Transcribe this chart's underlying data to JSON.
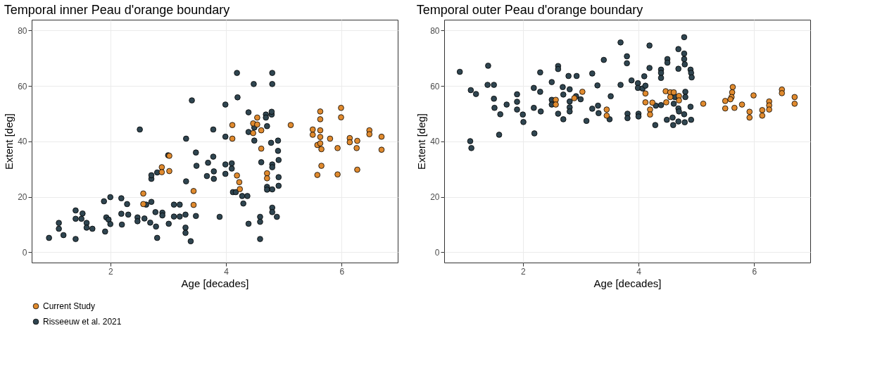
{
  "chart_data": [
    {
      "type": "scatter",
      "title": "Temporal inner Peau d'orange boundary",
      "xlabel": "Age [decades]",
      "ylabel": "Extent [deg]",
      "xlim": [
        0.64,
        6.97
      ],
      "ylim": [
        -3.7,
        83.9
      ],
      "xticks": [
        2,
        4,
        6
      ],
      "yticks": [
        0,
        20,
        40,
        60,
        80
      ],
      "grid": true,
      "legend": "bottom",
      "marker": "circle",
      "series": [
        {
          "name": "Current Study",
          "color": "#e08a2e",
          "x": [
            2.57,
            2.57,
            2.89,
            2.89,
            3.02,
            3.02,
            3.44,
            3.44,
            4.11,
            4.11,
            4.19,
            4.23,
            4.24,
            4.47,
            4.47,
            4.54,
            4.54,
            4.61,
            4.61,
            4.71,
            4.71,
            5.12,
            5.5,
            5.5,
            5.58,
            5.63,
            5.63,
            5.63,
            5.63,
            5.63,
            5.65,
            5.65,
            5.58,
            5.8,
            5.93,
            5.93,
            5.99,
            5.99,
            6.14,
            6.14,
            6.27,
            6.26,
            6.27,
            6.48,
            6.48,
            6.69,
            6.69
          ],
          "values": [
            21.2,
            17.4,
            30.7,
            28.9,
            34.8,
            29.3,
            22.1,
            17.1,
            45.9,
            41.0,
            27.7,
            25.3,
            22.8,
            46.5,
            43.0,
            48.6,
            46.1,
            44.0,
            37.4,
            28.5,
            26.7,
            45.9,
            44.3,
            42.4,
            38.7,
            50.8,
            48.0,
            44.0,
            41.6,
            39.3,
            37.2,
            31.2,
            27.9,
            41.0,
            37.6,
            28.1,
            52.1,
            48.7,
            41.2,
            39.7,
            40.2,
            37.6,
            29.8,
            44.0,
            42.6,
            41.7,
            37.0
          ]
        },
        {
          "name": "Risseeuw et al. 2021",
          "color": "#2f4550",
          "x": [
            0.94,
            1.11,
            1.11,
            1.19,
            1.4,
            1.4,
            1.4,
            1.5,
            1.52,
            1.59,
            1.59,
            1.69,
            1.89,
            1.91,
            1.93,
            1.97,
            2.0,
            2.0,
            2.19,
            2.19,
            2.2,
            2.29,
            2.31,
            2.47,
            2.47,
            2.51,
            2.59,
            2.62,
            2.69,
            2.71,
            2.71,
            2.71,
            2.78,
            2.79,
            2.81,
            2.81,
            2.9,
            2.9,
            3.01,
            3.0,
            3.1,
            3.1,
            3.2,
            3.2,
            3.3,
            3.3,
            3.3,
            3.31,
            3.31,
            3.39,
            3.41,
            3.48,
            3.49,
            3.48,
            3.67,
            3.69,
            3.78,
            3.78,
            3.79,
            3.79,
            3.89,
            3.99,
            3.99,
            3.99,
            3.99,
            4.1,
            4.1,
            4.19,
            4.2,
            4.12,
            4.17,
            4.28,
            4.37,
            4.3,
            4.39,
            4.39,
            4.39,
            4.48,
            4.49,
            4.49,
            4.59,
            4.59,
            4.59,
            4.61,
            4.69,
            4.69,
            4.71,
            4.71,
            4.71,
            4.79,
            4.79,
            4.8,
            4.8,
            4.78,
            4.8,
            4.8,
            4.8,
            4.8,
            4.8,
            4.88,
            4.9,
            4.9,
            4.91,
            4.91,
            4.91
          ],
          "values": [
            5.2,
            10.6,
            8.5,
            6.2,
            15.1,
            12.1,
            4.8,
            12.1,
            14.0,
            10.6,
            8.9,
            8.5,
            18.4,
            7.5,
            12.6,
            11.8,
            10.2,
            19.9,
            19.5,
            13.9,
            10.0,
            17.4,
            13.6,
            12.6,
            11.2,
            44.3,
            12.2,
            17.2,
            10.7,
            18.2,
            26.5,
            27.8,
            14.5,
            9.3,
            5.2,
            28.8,
            14.3,
            13.3,
            10.3,
            35.0,
            17.2,
            12.9,
            17.2,
            12.9,
            13.6,
            8.9,
            7.0,
            25.6,
            41.0,
            4.0,
            54.8,
            36.0,
            31.2,
            13.1,
            27.5,
            32.3,
            44.3,
            34.5,
            29.2,
            26.5,
            12.8,
            53.3,
            41.7,
            31.7,
            28.3,
            32.1,
            30.2,
            64.7,
            55.9,
            21.7,
            21.7,
            20.3,
            20.3,
            17.6,
            10.3,
            50.5,
            43.4,
            60.7,
            45.0,
            40.3,
            4.8,
            12.8,
            11.0,
            32.5,
            49.7,
            48.6,
            45.5,
            23.6,
            22.6,
            49.7,
            50.7,
            64.7,
            60.7,
            39.5,
            31.7,
            30.7,
            22.7,
            16.1,
            14.5,
            12.8,
            40.3,
            36.6,
            33.3,
            27.1,
            24.0
          ]
        }
      ]
    },
    {
      "type": "scatter",
      "title": "Temporal outer Peau d'orange boundary",
      "xlabel": "Age [decades]",
      "ylabel": "Extent [deg]",
      "xlim": [
        0.64,
        6.97
      ],
      "ylim": [
        -3.7,
        83.9
      ],
      "xticks": [
        2,
        4,
        6
      ],
      "yticks": [
        0,
        20,
        40,
        60,
        80
      ],
      "grid": true,
      "legend": "bottom",
      "marker": "circle",
      "series": [
        {
          "name": "Current Study",
          "color": "#e08a2e",
          "x": [
            2.57,
            2.57,
            2.89,
            3.03,
            3.45,
            3.45,
            4.12,
            4.12,
            4.2,
            4.2,
            4.24,
            4.47,
            4.48,
            4.55,
            4.55,
            4.61,
            4.7,
            4.7,
            5.12,
            5.5,
            5.5,
            5.63,
            5.62,
            5.61,
            5.59,
            5.66,
            5.79,
            5.92,
            5.92,
            5.99,
            6.14,
            6.14,
            6.26,
            6.26,
            6.26,
            6.48,
            6.48,
            6.7,
            6.7
          ],
          "values": [
            55.0,
            53.3,
            55.6,
            57.9,
            51.5,
            49.3,
            57.3,
            54.1,
            51.5,
            49.7,
            54.0,
            58.1,
            54.1,
            57.7,
            56.0,
            57.7,
            56.4,
            54.8,
            53.6,
            54.6,
            51.9,
            59.6,
            57.7,
            56.0,
            55.2,
            52.1,
            53.3,
            50.7,
            48.6,
            56.6,
            51.3,
            49.3,
            54.4,
            53.0,
            51.5,
            58.7,
            57.4,
            56.0,
            53.6
          ]
        },
        {
          "name": "Risseeuw et al. 2021",
          "color": "#2f4550",
          "x": [
            0.91,
            1.09,
            1.11,
            1.1,
            1.19,
            1.4,
            1.39,
            1.5,
            1.5,
            1.51,
            1.61,
            1.59,
            1.72,
            1.9,
            1.9,
            1.9,
            2.0,
            2.01,
            2.19,
            2.19,
            2.2,
            2.3,
            2.3,
            2.31,
            2.5,
            2.5,
            2.5,
            2.61,
            2.61,
            2.61,
            2.69,
            2.7,
            2.7,
            2.79,
            2.81,
            2.81,
            2.81,
            2.81,
            2.93,
            2.92,
            3.0,
            3.1,
            3.2,
            3.2,
            3.29,
            3.3,
            3.31,
            3.4,
            3.5,
            3.52,
            3.69,
            3.69,
            3.8,
            3.8,
            3.81,
            3.81,
            3.88,
            4.0,
            4.0,
            3.99,
            3.99,
            4.07,
            4.12,
            4.1,
            4.19,
            4.19,
            4.29,
            4.3,
            4.39,
            4.39,
            4.39,
            4.39,
            4.5,
            4.5,
            4.49,
            4.59,
            4.6,
            4.61,
            4.63,
            4.69,
            4.69,
            4.69,
            4.69,
            4.7,
            4.79,
            4.79,
            4.79,
            4.8,
            4.79,
            4.8,
            4.81,
            4.81,
            4.9,
            4.91,
            4.92,
            4.9,
            4.91
          ],
          "values": [
            65.1,
            40.1,
            37.6,
            58.5,
            57.1,
            67.3,
            60.4,
            60.4,
            55.4,
            52.1,
            49.8,
            42.4,
            53.3,
            57.0,
            54.3,
            51.5,
            49.7,
            47.0,
            59.3,
            52.1,
            42.9,
            64.9,
            57.9,
            50.8,
            61.4,
            55.0,
            53.3,
            67.2,
            66.1,
            50.0,
            59.6,
            56.9,
            48.0,
            63.6,
            58.8,
            54.4,
            52.3,
            50.8,
            63.6,
            56.3,
            55.2,
            47.4,
            64.5,
            51.8,
            60.2,
            52.9,
            50.2,
            69.4,
            48.0,
            56.3,
            75.7,
            60.4,
            70.7,
            68.2,
            50.0,
            48.4,
            62.0,
            50.0,
            49.0,
            61.0,
            59.3,
            59.1,
            60.1,
            63.5,
            74.6,
            66.5,
            45.9,
            52.9,
            53.1,
            65.9,
            64.7,
            62.9,
            69.7,
            68.4,
            47.8,
            48.6,
            45.9,
            53.6,
            56.0,
            73.3,
            66.2,
            51.9,
            47.2,
            50.8,
            77.6,
            71.7,
            69.7,
            67.8,
            49.8,
            46.9,
            57.9,
            56.0,
            65.9,
            64.7,
            63.1,
            52.5,
            47.8
          ]
        }
      ]
    }
  ]
}
